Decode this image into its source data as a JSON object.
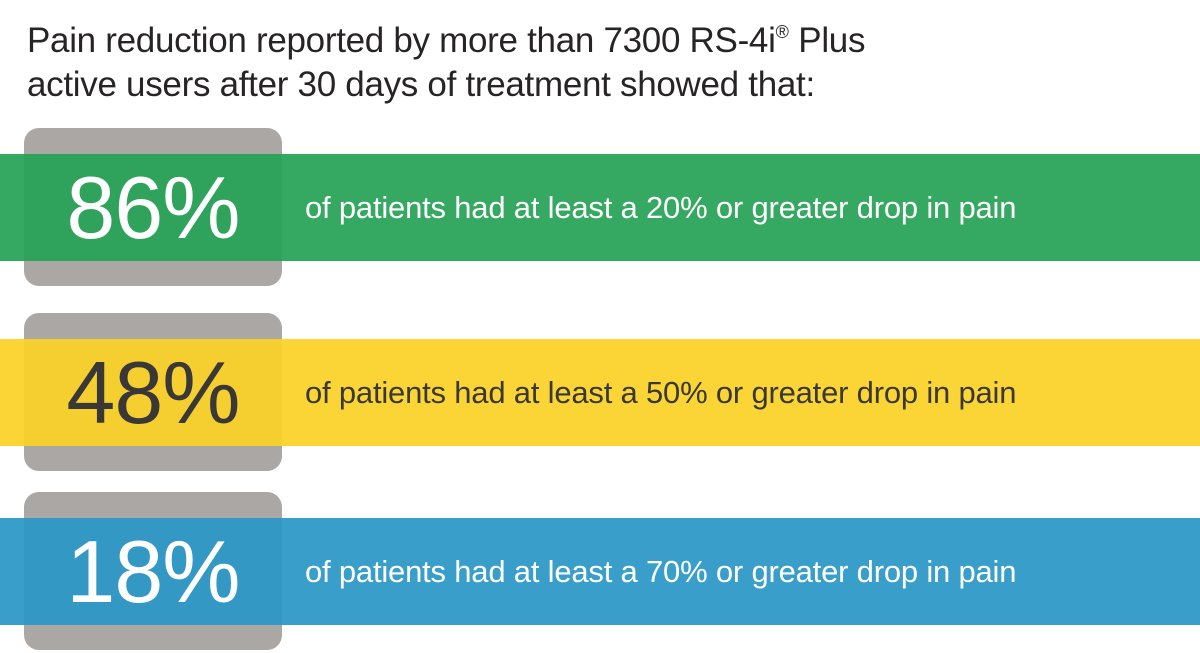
{
  "title": {
    "pre_reg": "Pain reduction reported by more than 7300 RS-4i",
    "reg_mark": "®",
    "post_reg": " Plus\nactive users after 30 days of treatment showed that:",
    "color": "#272425"
  },
  "plate_color": "#aba7a5",
  "rows": [
    {
      "value": "86%",
      "label": "of patients had at least a 20% or greater drop in pain",
      "bar_color": "#26a355",
      "value_color": "#ffffff",
      "label_color": "#ffffff"
    },
    {
      "value": "48%",
      "label": "of patients had at least a 50% or greater drop in pain",
      "bar_color": "#fad226",
      "value_color": "#3a3836",
      "label_color": "#3a3836"
    },
    {
      "value": "18%",
      "label": "of patients had at least a 70% or greater drop in pain",
      "bar_color": "#2a98c6",
      "value_color": "#ffffff",
      "label_color": "#ffffff"
    }
  ],
  "chart_data": {
    "type": "bar",
    "title": "Pain reduction reported by more than 7300 RS-4i® Plus active users after 30 days of treatment showed that:",
    "categories": [
      "at least a 20% or greater drop in pain",
      "at least a 50% or greater drop in pain",
      "at least a 70% or greater drop in pain"
    ],
    "values": [
      86,
      48,
      18
    ],
    "unit": "% of patients",
    "ylim": [
      0,
      100
    ],
    "colors": [
      "#26a355",
      "#fad226",
      "#2a98c6"
    ],
    "legend": false,
    "grid": false,
    "layout": "horizontal stat rows, full-bleed color bands over gray rounded plates"
  }
}
